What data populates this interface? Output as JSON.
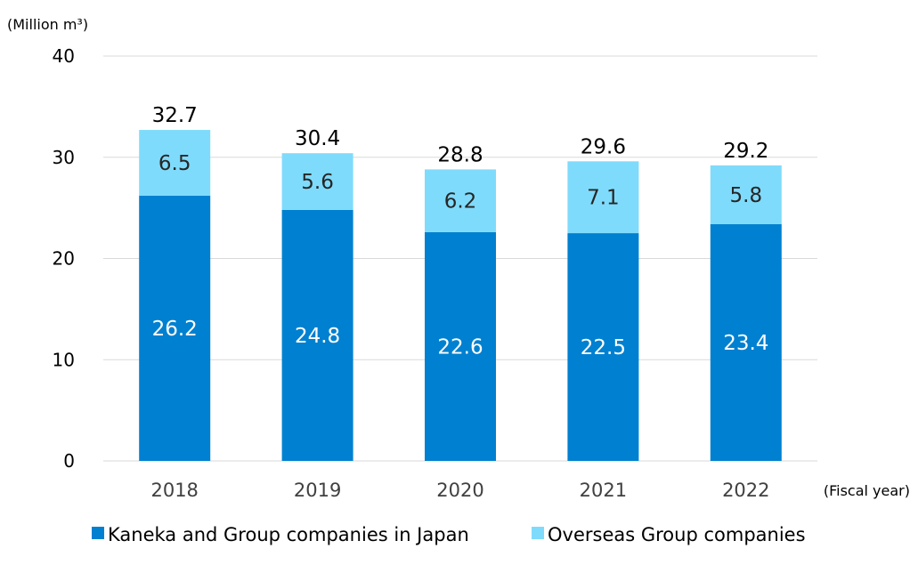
{
  "chart_data": {
    "type": "bar",
    "stacked": true,
    "ylabel": "(Million m³)",
    "xlabel": "(Fiscal year)",
    "ylim": [
      0,
      40
    ],
    "yticks": [
      0,
      10,
      20,
      30,
      40
    ],
    "grid": true,
    "legend_position": "bottom",
    "categories": [
      "2018",
      "2019",
      "2020",
      "2021",
      "2022"
    ],
    "totals": [
      "32.7",
      "30.4",
      "28.8",
      "29.6",
      "29.2"
    ],
    "series": [
      {
        "name": "Kaneka and Group companies in Japan",
        "color": "#0080d0",
        "values": [
          26.2,
          24.8,
          22.6,
          22.5,
          23.4
        ]
      },
      {
        "name": "Overseas Group companies",
        "color": "#7fdbfb",
        "values": [
          6.5,
          5.6,
          6.2,
          7.1,
          5.8
        ]
      }
    ]
  }
}
